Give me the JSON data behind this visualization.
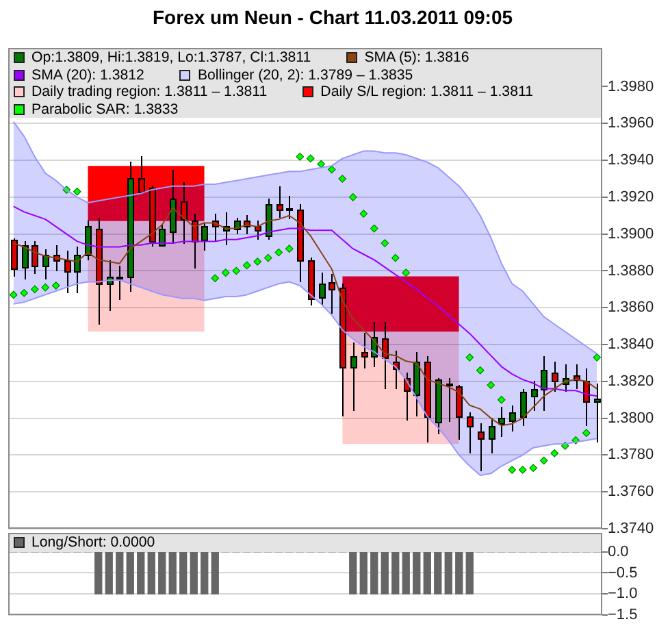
{
  "chart_data": [
    {
      "type": "candlestick",
      "title": "Forex um Neun - Chart 11.03.2011 09:05",
      "categories": [
        null,
        null,
        null,
        null,
        null,
        null,
        null,
        null,
        null,
        null,
        null,
        null,
        null,
        null,
        null,
        null,
        null,
        null,
        null,
        null,
        null,
        null,
        null,
        null,
        null,
        null,
        null,
        null,
        null,
        null,
        null,
        null,
        null,
        null,
        null,
        null,
        null,
        null,
        null,
        null,
        null,
        null,
        null,
        null,
        null,
        null,
        null,
        null,
        null,
        null,
        null,
        null,
        null,
        null,
        null,
        null
      ],
      "ylim": [
        1.374,
        1.4001
      ],
      "yticks": [
        {
          "value": 1.374,
          "label": "1.3740"
        },
        {
          "value": 1.376,
          "label": "1.3760"
        },
        {
          "value": 1.378,
          "label": "1.3780"
        },
        {
          "value": 1.38,
          "label": "1.3800"
        },
        {
          "value": 1.382,
          "label": "1.3820"
        },
        {
          "value": 1.384,
          "label": "1.3840"
        },
        {
          "value": 1.386,
          "label": "1.3860"
        },
        {
          "value": 1.388,
          "label": "1.3880"
        },
        {
          "value": 1.39,
          "label": "1.3900"
        },
        {
          "value": 1.392,
          "label": "1.3920"
        },
        {
          "value": 1.394,
          "label": "1.3940"
        },
        {
          "value": 1.396,
          "label": "1.3960"
        },
        {
          "value": 1.398,
          "label": "1.3980"
        }
      ],
      "grid": "y",
      "legend": "top",
      "tick_labels": "y",
      "series": [
        {
          "name": "Op:1.3809, Hi:1.3819, Lo:1.3787, Cl:1.3811",
          "type": "candlestick",
          "color": "#007700",
          "colors": [
            "#dd0000",
            "#007700",
            "#dd0000",
            "#007700",
            "#dd0000",
            "#dd0000",
            "#007700",
            "#007700",
            "#dd0000",
            "#007700",
            "#dd0000",
            "#007700",
            "#dd0000",
            "#dd0000",
            "#007700",
            "#007700",
            "#dd0000",
            "#dd0000",
            "#007700",
            "#dd0000",
            "#007700",
            "#007700",
            "#dd0000",
            "#dd0000",
            "#007700",
            "#dd0000",
            "#dd0000",
            "#dd0000",
            "#dd0000",
            "#007700",
            "#dd0000",
            "#dd0000",
            "#007700",
            "#dd0000",
            "#007700",
            "#dd0000",
            "#dd0000",
            "#dd0000",
            "#007700",
            "#dd0000",
            "#007700",
            "#dd0000",
            "#dd0000",
            "#dd0000",
            "#dd0000",
            "#007700",
            "#007700",
            "#007700",
            "#007700",
            "#007700",
            "#007700",
            "#dd0000",
            "#007700",
            "#dd0000",
            "#dd0000",
            "#007700"
          ],
          "ohlc": [
            [
              1.3897,
              1.3898,
              1.3877,
              1.3881
            ],
            [
              1.3882,
              1.3896,
              1.3875,
              1.3894
            ],
            [
              1.3894,
              1.3896,
              1.3878,
              1.3883
            ],
            [
              1.3883,
              1.3892,
              1.3875,
              1.3889
            ],
            [
              1.3889,
              1.3894,
              1.388,
              1.3886
            ],
            [
              1.3886,
              1.3891,
              1.3868,
              1.388
            ],
            [
              1.388,
              1.3893,
              1.3868,
              1.3889
            ],
            [
              1.3889,
              1.3907,
              1.3886,
              1.3904
            ],
            [
              1.3903,
              1.3909,
              1.3851,
              1.3873
            ],
            [
              1.3873,
              1.3886,
              1.3858,
              1.3877
            ],
            [
              1.3877,
              1.3883,
              1.3864,
              1.3876
            ],
            [
              1.3877,
              1.3939,
              1.3869,
              1.393
            ],
            [
              1.393,
              1.3942,
              1.3922,
              1.3923
            ],
            [
              1.3925,
              1.3926,
              1.3893,
              1.3896
            ],
            [
              1.3894,
              1.3905,
              1.3893,
              1.3903
            ],
            [
              1.3901,
              1.3935,
              1.3895,
              1.3919
            ],
            [
              1.3918,
              1.3928,
              1.3895,
              1.3908
            ],
            [
              1.3907,
              1.3911,
              1.3881,
              1.3896
            ],
            [
              1.3897,
              1.3906,
              1.3891,
              1.3904
            ],
            [
              1.3907,
              1.3911,
              1.3896,
              1.3904
            ],
            [
              1.3902,
              1.3912,
              1.3894,
              1.3904
            ],
            [
              1.3903,
              1.3909,
              1.39,
              1.3907
            ],
            [
              1.3907,
              1.391,
              1.39,
              1.3904
            ],
            [
              1.3904,
              1.3907,
              1.3897,
              1.3902
            ],
            [
              1.3899,
              1.3919,
              1.3897,
              1.3916
            ],
            [
              1.3916,
              1.3926,
              1.3909,
              1.3913
            ],
            [
              1.3914,
              1.3921,
              1.3908,
              1.3913
            ],
            [
              1.3913,
              1.3916,
              1.3874,
              1.3886
            ],
            [
              1.3886,
              1.3887,
              1.3861,
              1.3865
            ],
            [
              1.3866,
              1.3879,
              1.3861,
              1.3873
            ],
            [
              1.3874,
              1.3878,
              1.3857,
              1.387
            ],
            [
              1.3871,
              1.3873,
              1.3801,
              1.3828
            ],
            [
              1.3828,
              1.3841,
              1.3804,
              1.3834
            ],
            [
              1.3836,
              1.3846,
              1.3827,
              1.3834
            ],
            [
              1.3834,
              1.3852,
              1.3828,
              1.3844
            ],
            [
              1.3843,
              1.3852,
              1.3816,
              1.3833
            ],
            [
              1.3831,
              1.3837,
              1.3816,
              1.3827
            ],
            [
              1.3822,
              1.3825,
              1.3799,
              1.3815
            ],
            [
              1.3813,
              1.3836,
              1.3801,
              1.3831
            ],
            [
              1.3831,
              1.3834,
              1.3787,
              1.3801
            ],
            [
              1.3798,
              1.3822,
              1.3791,
              1.3821
            ],
            [
              1.3819,
              1.3822,
              1.3798,
              1.3818
            ],
            [
              1.3817,
              1.3818,
              1.3788,
              1.3801
            ],
            [
              1.3801,
              1.3803,
              1.3781,
              1.3796
            ],
            [
              1.3793,
              1.3797,
              1.3771,
              1.3789
            ],
            [
              1.3789,
              1.38,
              1.3781,
              1.3796
            ],
            [
              1.3797,
              1.3806,
              1.379,
              1.38
            ],
            [
              1.3799,
              1.3807,
              1.3793,
              1.3803
            ],
            [
              1.3801,
              1.3816,
              1.3796,
              1.3814
            ],
            [
              1.3812,
              1.382,
              1.3804,
              1.3816
            ],
            [
              1.3816,
              1.3834,
              1.3804,
              1.3826
            ],
            [
              1.3825,
              1.3831,
              1.3814,
              1.382
            ],
            [
              1.3819,
              1.3829,
              1.3814,
              1.3822
            ],
            [
              1.3823,
              1.3829,
              1.3816,
              1.3821
            ],
            [
              1.382,
              1.3827,
              1.3796,
              1.3809
            ],
            [
              1.3809,
              1.3819,
              1.3787,
              1.3811
            ]
          ]
        },
        {
          "name": "SMA (5): 1.3816",
          "type": "line",
          "color": "#8b4513",
          "values": [
            1.3895,
            1.3893,
            1.389,
            1.3888,
            1.3887,
            1.3886,
            1.3885,
            1.389,
            1.3886,
            1.3885,
            1.3884,
            1.3892,
            1.3896,
            1.39,
            1.3905,
            1.3914,
            1.3909,
            1.3904,
            1.3906,
            1.3906,
            1.3903,
            1.3903,
            1.3905,
            1.3904,
            1.3907,
            1.3908,
            1.391,
            1.3906,
            1.3899,
            1.389,
            1.3881,
            1.3864,
            1.3854,
            1.3848,
            1.3842,
            1.3835,
            1.3834,
            1.3831,
            1.383,
            1.3821,
            1.3819,
            1.3817,
            1.3814,
            1.3807,
            1.3805,
            1.38,
            1.3796,
            1.3797,
            1.38,
            1.3806,
            1.3812,
            1.3816,
            1.382,
            1.3821,
            1.382,
            1.3816
          ]
        },
        {
          "name": "SMA (20): 1.3812",
          "type": "line",
          "color": "#9900ff",
          "values": [
            1.3915,
            1.3912,
            1.391,
            1.3908,
            1.3904,
            1.39,
            1.3896,
            1.3894,
            1.3893,
            1.3893,
            1.3893,
            1.3894,
            1.3894,
            1.3895,
            1.3895,
            1.3895,
            1.3896,
            1.3896,
            1.3896,
            1.3896,
            1.3897,
            1.3897,
            1.3898,
            1.3899,
            1.3901,
            1.3902,
            1.3903,
            1.3903,
            1.3902,
            1.3902,
            1.3902,
            1.3897,
            1.3892,
            1.3889,
            1.3886,
            1.3882,
            1.3878,
            1.3874,
            1.387,
            1.3865,
            1.3861,
            1.3856,
            1.3851,
            1.3846,
            1.384,
            1.3834,
            1.3828,
            1.3824,
            1.3821,
            1.3819,
            1.3816,
            1.3816,
            1.3815,
            1.3815,
            1.3813,
            1.3812
          ]
        },
        {
          "name": "Bollinger (20, 2): 1.3789 – 1.3835",
          "type": "area",
          "color": "#d2d2ff",
          "values": [
            null,
            null,
            null,
            null,
            null,
            null,
            null,
            null,
            null,
            null,
            null,
            null,
            null,
            null,
            null,
            null,
            null,
            null,
            null,
            null,
            null,
            null,
            null,
            null,
            null,
            null,
            null,
            null,
            null,
            null,
            null,
            null,
            null,
            null,
            null,
            null,
            null,
            null,
            null,
            null,
            null,
            null,
            null,
            null,
            null,
            null,
            null,
            null,
            null,
            null,
            null,
            null,
            null,
            null,
            null,
            null
          ],
          "upper": [
            1.3961,
            1.3953,
            1.3942,
            1.3933,
            1.3929,
            1.3924,
            1.392,
            1.3917,
            1.3918,
            1.3919,
            1.392,
            1.3921,
            1.3922,
            1.3924,
            1.3925,
            1.3926,
            1.3926,
            1.3926,
            1.3927,
            1.3927,
            1.3928,
            1.3929,
            1.393,
            1.3931,
            1.3932,
            1.3933,
            1.3934,
            1.3934,
            1.3935,
            1.3936,
            1.3937,
            1.3941,
            1.3943,
            1.3945,
            1.3945,
            1.3944,
            1.3944,
            1.3943,
            1.3941,
            1.3939,
            1.3936,
            1.3931,
            1.3926,
            1.3919,
            1.391,
            1.3898,
            1.3884,
            1.3873,
            1.3869,
            1.3862,
            1.3855,
            1.3851,
            1.3847,
            1.3843,
            1.3839,
            1.3835
          ],
          "lower": [
            1.3862,
            1.3863,
            1.3865,
            1.3867,
            1.3869,
            1.3871,
            1.3873,
            1.3874,
            1.3874,
            1.3875,
            1.3875,
            1.3873,
            1.3871,
            1.3869,
            1.3867,
            1.3866,
            1.3865,
            1.3865,
            1.3864,
            1.3865,
            1.3866,
            1.3866,
            1.3867,
            1.3869,
            1.3871,
            1.3873,
            1.3874,
            1.3872,
            1.3867,
            1.3862,
            1.3856,
            1.3848,
            1.3843,
            1.3839,
            1.3836,
            1.3832,
            1.3828,
            1.3821,
            1.3811,
            1.3801,
            1.3795,
            1.3788,
            1.378,
            1.3774,
            1.3769,
            1.377,
            1.3774,
            1.3777,
            1.378,
            1.3784,
            1.3785,
            1.3786,
            1.3786,
            1.3787,
            1.3788,
            1.3789
          ]
        },
        {
          "type": "line",
          "color": "#9999ff",
          "values": [
            1.3961,
            1.3953,
            1.3942,
            1.3933,
            1.3929,
            1.3924,
            1.392,
            1.3917,
            1.3918,
            1.3919,
            1.392,
            1.3921,
            1.3922,
            1.3924,
            1.3925,
            1.3926,
            1.3926,
            1.3926,
            1.3927,
            1.3927,
            1.3928,
            1.3929,
            1.393,
            1.3931,
            1.3932,
            1.3933,
            1.3934,
            1.3934,
            1.3935,
            1.3936,
            1.3937,
            1.3941,
            1.3943,
            1.3945,
            1.3945,
            1.3944,
            1.3944,
            1.3943,
            1.3941,
            1.3939,
            1.3936,
            1.3931,
            1.3926,
            1.3919,
            1.391,
            1.3898,
            1.3884,
            1.3873,
            1.3869,
            1.3862,
            1.3855,
            1.3851,
            1.3847,
            1.3843,
            1.3839,
            1.3835
          ]
        },
        {
          "type": "line",
          "color": "#9999ff",
          "values": [
            1.3862,
            1.3863,
            1.3865,
            1.3867,
            1.3869,
            1.3871,
            1.3873,
            1.3874,
            1.3874,
            1.3875,
            1.3875,
            1.3873,
            1.3871,
            1.3869,
            1.3867,
            1.3866,
            1.3865,
            1.3865,
            1.3864,
            1.3865,
            1.3866,
            1.3866,
            1.3867,
            1.3869,
            1.3871,
            1.3873,
            1.3874,
            1.3872,
            1.3867,
            1.3862,
            1.3856,
            1.3848,
            1.3843,
            1.3839,
            1.3836,
            1.3832,
            1.3828,
            1.3821,
            1.3811,
            1.3801,
            1.3795,
            1.3788,
            1.378,
            1.3774,
            1.3769,
            1.377,
            1.3774,
            1.3777,
            1.378,
            1.3784,
            1.3785,
            1.3786,
            1.3786,
            1.3787,
            1.3788,
            1.3789
          ]
        },
        {
          "name": "Daily trading region: 1.3811 – 1.3811",
          "type": "area",
          "color": "#ffcccc",
          "values": [
            null,
            null,
            null,
            null,
            null,
            null,
            null,
            null,
            null,
            null,
            null,
            null,
            null,
            null,
            null,
            null,
            null,
            null,
            null,
            null,
            null,
            null,
            null,
            null,
            null,
            null,
            null,
            null,
            null,
            null,
            null,
            null,
            null,
            null,
            null,
            null,
            null,
            null,
            null,
            null,
            null,
            null,
            null,
            null,
            null,
            null,
            null,
            null,
            null,
            null,
            null,
            null,
            null,
            null,
            null,
            null
          ],
          "upper": [
            null,
            null,
            null,
            null,
            null,
            null,
            null,
            1.3907,
            1.3907,
            1.3907,
            1.3907,
            1.3907,
            1.3907,
            1.3907,
            1.3907,
            1.3907,
            1.3907,
            1.3907,
            1.3907,
            null,
            null,
            null,
            null,
            null,
            null,
            null,
            null,
            null,
            null,
            null,
            null,
            1.3847,
            1.3847,
            1.3847,
            1.3847,
            1.3847,
            1.3847,
            1.3847,
            1.3847,
            1.3847,
            1.3847,
            1.3847,
            1.3847,
            null,
            null,
            null,
            null,
            null,
            null,
            null,
            null,
            null,
            null,
            null,
            null,
            null
          ],
          "lower": [
            null,
            null,
            null,
            null,
            null,
            null,
            null,
            1.3847,
            1.3847,
            1.3847,
            1.3847,
            1.3847,
            1.3847,
            1.3847,
            1.3847,
            1.3847,
            1.3847,
            1.3847,
            1.3847,
            null,
            null,
            null,
            null,
            null,
            null,
            null,
            null,
            null,
            null,
            null,
            null,
            1.3786,
            1.3786,
            1.3786,
            1.3786,
            1.3786,
            1.3786,
            1.3786,
            1.3786,
            1.3786,
            1.3786,
            1.3786,
            1.3786,
            null,
            null,
            null,
            null,
            null,
            null,
            null,
            null,
            null,
            null,
            null,
            null,
            null
          ]
        },
        {
          "name": "Daily S/L region: 1.3811 – 1.3811",
          "type": "area",
          "color": "#ff0000",
          "values": [
            null,
            null,
            null,
            null,
            null,
            null,
            null,
            null,
            null,
            null,
            null,
            null,
            null,
            null,
            null,
            null,
            null,
            null,
            null,
            null,
            null,
            null,
            null,
            null,
            null,
            null,
            null,
            null,
            null,
            null,
            null,
            null,
            null,
            null,
            null,
            null,
            null,
            null,
            null,
            null,
            null,
            null,
            null,
            null,
            null,
            null,
            null,
            null,
            null,
            null,
            null,
            null,
            null,
            null,
            null,
            null
          ],
          "upper": [
            null,
            null,
            null,
            null,
            null,
            null,
            null,
            1.3937,
            1.3937,
            1.3937,
            1.3937,
            1.3937,
            1.3937,
            1.3937,
            1.3937,
            1.3937,
            1.3937,
            1.3937,
            1.3937,
            null,
            null,
            null,
            null,
            null,
            null,
            null,
            null,
            null,
            null,
            null,
            null,
            1.3877,
            1.3877,
            1.3877,
            1.3877,
            1.3877,
            1.3877,
            1.3877,
            1.3877,
            1.3877,
            1.3877,
            1.3877,
            1.3877,
            null,
            null,
            null,
            null,
            null,
            null,
            null,
            null,
            null,
            null,
            null,
            null,
            null
          ],
          "lower": [
            null,
            null,
            null,
            null,
            null,
            null,
            null,
            1.3907,
            1.3907,
            1.3907,
            1.3907,
            1.3907,
            1.3907,
            1.3907,
            1.3907,
            1.3907,
            1.3907,
            1.3907,
            1.3907,
            null,
            null,
            null,
            null,
            null,
            null,
            null,
            null,
            null,
            null,
            null,
            null,
            1.3847,
            1.3847,
            1.3847,
            1.3847,
            1.3847,
            1.3847,
            1.3847,
            1.3847,
            1.3847,
            1.3847,
            1.3847,
            1.3847,
            null,
            null,
            null,
            null,
            null,
            null,
            null,
            null,
            null,
            null,
            null,
            null,
            null
          ]
        },
        {
          "name": "Parabolic SAR: 1.3833",
          "type": "scatter",
          "color": "#00ff00",
          "marker": "diamond",
          "values": [
            1.3867,
            1.3868,
            1.387,
            1.3871,
            1.3872,
            1.3924,
            1.3923,
            null,
            null,
            null,
            null,
            null,
            null,
            null,
            null,
            null,
            null,
            null,
            null,
            1.3876,
            1.3879,
            1.388,
            1.3883,
            1.3885,
            1.3887,
            1.389,
            1.3892,
            1.3942,
            1.3941,
            1.3938,
            1.3935,
            1.393,
            1.392,
            1.3911,
            1.3903,
            1.3895,
            1.3887,
            1.3879,
            null,
            null,
            null,
            null,
            null,
            1.3833,
            1.3826,
            1.3818,
            1.381,
            1.3772,
            1.3772,
            1.3773,
            1.3777,
            1.3781,
            1.3785,
            1.3788,
            1.3792,
            1.3833
          ]
        }
      ]
    },
    {
      "type": "bar",
      "categories": [
        null,
        null,
        null,
        null,
        null,
        null,
        null,
        null,
        null,
        null,
        null,
        null,
        null,
        null,
        null,
        null,
        null,
        null,
        null,
        null,
        null,
        null,
        null,
        null,
        null,
        null,
        null,
        null,
        null,
        null,
        null,
        null,
        null,
        null,
        null,
        null,
        null,
        null,
        null,
        null,
        null,
        null,
        null,
        null,
        null,
        null,
        null,
        null,
        null,
        null,
        null,
        null,
        null,
        null,
        null,
        null
      ],
      "ylim": [
        -1.5,
        0.45
      ],
      "yticks": [
        {
          "value": -1.5,
          "label": "−1.5"
        },
        {
          "value": -1,
          "label": "−1.0"
        },
        {
          "value": -0.5,
          "label": "−0.5"
        },
        {
          "value": 0,
          "label": "0.0"
        }
      ],
      "grid": "y",
      "legend": "top",
      "tick_labels": "y",
      "series": [
        {
          "name": "Long/Short: 0.0000",
          "color": "#666666",
          "values": [
            0,
            0,
            0,
            0,
            0,
            0,
            0,
            0,
            -1,
            -1,
            -1,
            -1,
            -1,
            -1,
            -1,
            -1,
            -1,
            -1,
            -1,
            -1,
            0,
            0,
            0,
            0,
            0,
            0,
            0,
            0,
            0,
            0,
            0,
            0,
            -1,
            -1,
            -1,
            -1,
            -1,
            -1,
            -1,
            -1,
            -1,
            -1,
            -1,
            -1,
            0,
            0,
            0,
            0,
            0,
            0,
            0,
            0,
            0,
            0,
            0,
            0
          ]
        }
      ]
    }
  ]
}
